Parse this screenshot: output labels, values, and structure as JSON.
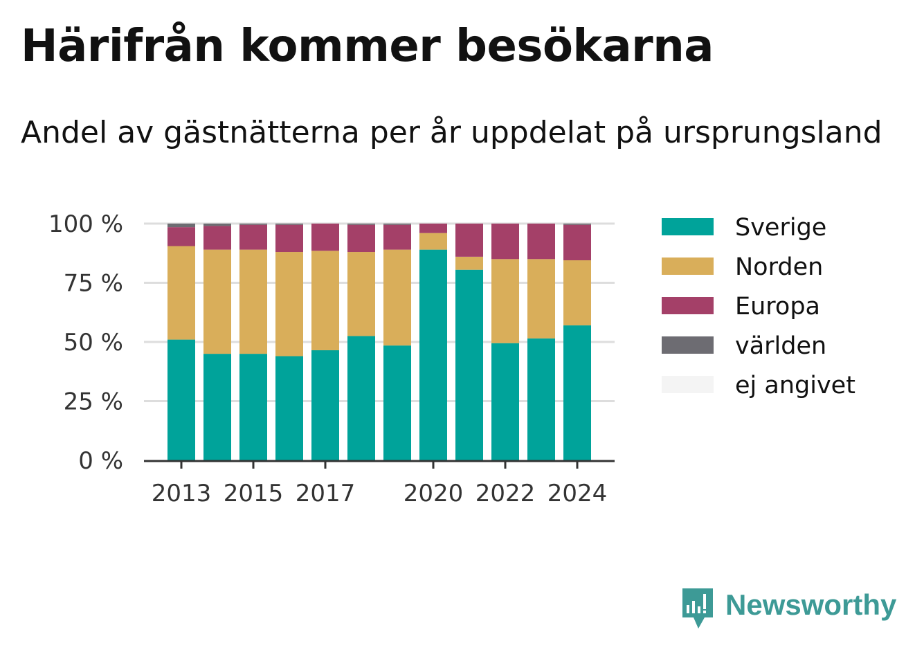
{
  "title": "Härifrån kommer besökarna",
  "subtitle": "Andel av gästnätterna per år uppdelat på ursprungsland",
  "brand": "Newsworthy",
  "colors": {
    "Sverige": "#00a39a",
    "Norden": "#d9ae5a",
    "Europa": "#a44068",
    "världen": "#6d6c72",
    "ej angivet": "#f4f4f4",
    "grid": "#dddddd",
    "axis": "#333333",
    "brand": "#3d9a96"
  },
  "chart_data": {
    "type": "bar",
    "stacked": true,
    "categories": [
      "2013",
      "2014",
      "2015",
      "2016",
      "2017",
      "2018",
      "2019",
      "2020",
      "2021",
      "2022",
      "2023",
      "2024"
    ],
    "x_tick_labels": [
      "2013",
      "2015",
      "2017",
      "2020",
      "2022",
      "2024"
    ],
    "y_ticks": [
      "0 %",
      "25 %",
      "50 %",
      "75 %",
      "100 %"
    ],
    "ylim": [
      0,
      100
    ],
    "grid": true,
    "legend_position": "right",
    "series": [
      {
        "name": "Sverige",
        "values": [
          51,
          45,
          45,
          44,
          46.5,
          52.5,
          48.5,
          89,
          80.5,
          49.5,
          51.5,
          57
        ]
      },
      {
        "name": "Norden",
        "values": [
          39.5,
          44,
          44,
          44,
          42,
          35.5,
          40.5,
          7,
          5.5,
          35.5,
          33.5,
          27.5
        ]
      },
      {
        "name": "Europa",
        "values": [
          8,
          10,
          10.5,
          11.5,
          11.5,
          11.5,
          10.5,
          4,
          14,
          15,
          15,
          15
        ]
      },
      {
        "name": "världen",
        "values": [
          1.5,
          1,
          0.5,
          0.5,
          0,
          0.5,
          0.5,
          0,
          0,
          0,
          0,
          0.5
        ]
      },
      {
        "name": "ej angivet",
        "values": [
          0,
          0,
          0,
          0,
          0,
          0,
          0,
          0,
          0,
          0,
          0,
          0
        ]
      }
    ]
  }
}
